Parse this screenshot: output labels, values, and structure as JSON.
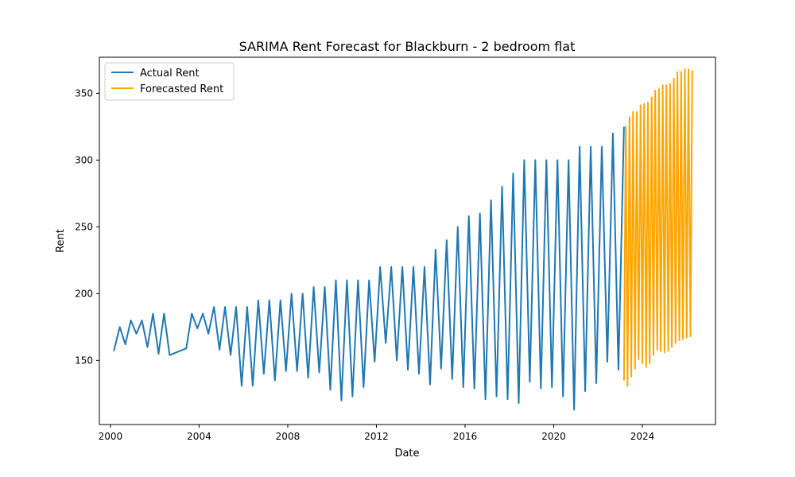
{
  "chart_data": {
    "type": "line",
    "title": "SARIMA Rent Forecast for Blackburn - 2 bedroom flat",
    "xlabel": "Date",
    "ylabel": "Rent",
    "xlim": [
      1999.5,
      2027.3
    ],
    "ylim": [
      102,
      377
    ],
    "x_ticks": [
      2000,
      2004,
      2008,
      2012,
      2016,
      2020,
      2024
    ],
    "x_tick_labels": [
      "2000",
      "2004",
      "2008",
      "2012",
      "2016",
      "2020",
      "2024"
    ],
    "y_ticks": [
      150,
      200,
      250,
      300,
      350
    ],
    "y_tick_labels": [
      "150",
      "200",
      "250",
      "300",
      "350"
    ],
    "grid": false,
    "legend_position": "top-left",
    "series": [
      {
        "name": "Actual Rent",
        "color": "#1f77b4",
        "x": [
          2000.15,
          2000.42,
          2000.67,
          2000.92,
          2001.17,
          2001.42,
          2001.67,
          2001.92,
          2002.17,
          2002.42,
          2002.67,
          2003.42,
          2003.67,
          2003.92,
          2004.17,
          2004.42,
          2004.67,
          2004.92,
          2005.17,
          2005.42,
          2005.67,
          2005.92,
          2006.17,
          2006.42,
          2006.67,
          2006.92,
          2007.17,
          2007.42,
          2007.67,
          2007.92,
          2008.17,
          2008.42,
          2008.67,
          2008.92,
          2009.17,
          2009.42,
          2009.67,
          2009.92,
          2010.17,
          2010.42,
          2010.67,
          2010.92,
          2011.17,
          2011.42,
          2011.67,
          2011.92,
          2012.17,
          2012.42,
          2012.67,
          2012.92,
          2013.17,
          2013.42,
          2013.67,
          2013.92,
          2014.17,
          2014.42,
          2014.67,
          2014.92,
          2015.17,
          2015.42,
          2015.67,
          2015.92,
          2016.17,
          2016.42,
          2016.67,
          2016.92,
          2017.17,
          2017.42,
          2017.67,
          2017.92,
          2018.17,
          2018.42,
          2018.67,
          2018.92,
          2019.17,
          2019.42,
          2019.67,
          2019.92,
          2020.17,
          2020.42,
          2020.67,
          2020.92,
          2021.17,
          2021.42,
          2021.67,
          2021.92,
          2022.17,
          2022.42,
          2022.67,
          2022.92,
          2023.17
        ],
        "values": [
          157,
          175,
          162,
          180,
          170,
          180,
          160,
          185,
          155,
          185,
          154,
          159,
          185,
          174,
          185,
          170,
          190,
          158,
          190,
          154,
          190,
          131,
          190,
          131,
          195,
          140,
          195,
          135,
          195,
          142,
          200,
          142,
          200,
          137,
          205,
          141,
          205,
          128,
          210,
          120,
          210,
          123,
          210,
          130,
          210,
          149,
          220,
          163,
          220,
          150,
          220,
          143,
          220,
          140,
          220,
          132,
          233,
          144,
          240,
          136,
          250,
          130,
          258,
          129,
          260,
          121,
          270,
          123,
          280,
          121,
          290,
          118,
          300,
          134,
          300,
          129,
          300,
          130,
          300,
          123,
          300,
          113,
          310,
          127,
          310,
          133,
          310,
          149,
          320,
          143,
          325
        ]
      },
      {
        "name": "Forecasted Rent",
        "color": "#ffa500",
        "x": [
          2023.17,
          2023.25,
          2023.33,
          2023.42,
          2023.5,
          2023.58,
          2023.67,
          2023.75,
          2023.83,
          2023.92,
          2024.0,
          2024.08,
          2024.17,
          2024.25,
          2024.33,
          2024.42,
          2024.5,
          2024.58,
          2024.67,
          2024.75,
          2024.83,
          2024.92,
          2025.0,
          2025.08,
          2025.17,
          2025.25,
          2025.33,
          2025.42,
          2025.5,
          2025.58,
          2025.67,
          2025.75,
          2025.83,
          2025.92,
          2026.0,
          2026.08,
          2026.17,
          2026.25
        ],
        "values": [
          135,
          325,
          131,
          332,
          138,
          336,
          144,
          336,
          151,
          341,
          148,
          342,
          145,
          343,
          148,
          347,
          154,
          352,
          158,
          353,
          157,
          356,
          156,
          356,
          157,
          357,
          160,
          361,
          163,
          366,
          165,
          366,
          166,
          368,
          167,
          368,
          168,
          367
        ]
      }
    ]
  }
}
